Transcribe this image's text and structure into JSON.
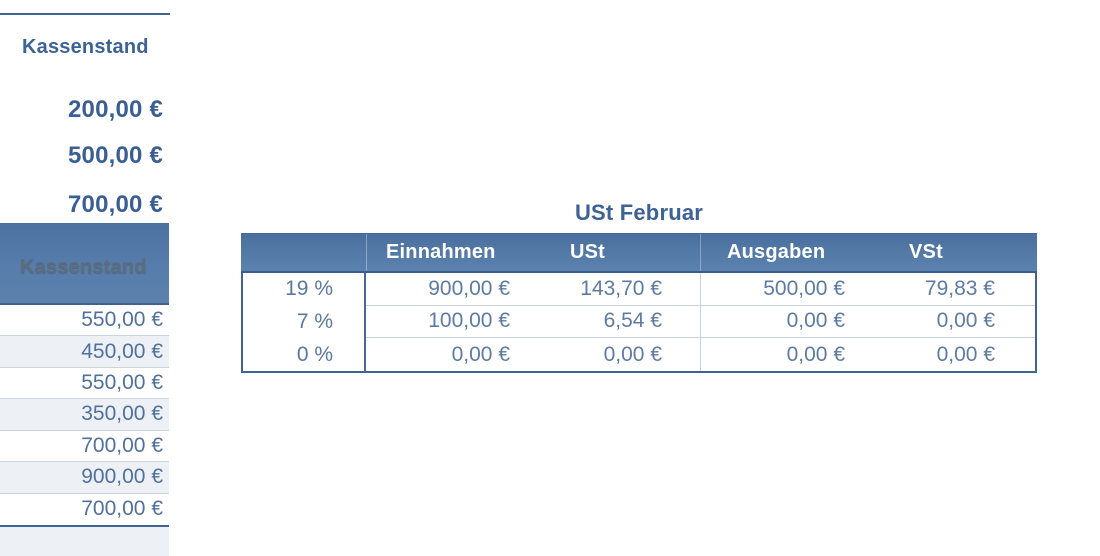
{
  "kassenstand_upper": {
    "header": "Kassenstand",
    "values": [
      "200,00 €",
      "500,00 €",
      "700,00 €"
    ]
  },
  "kassenstand_lower": {
    "header": "Kassenstand",
    "values": [
      "550,00 €",
      "450,00 €",
      "550,00 €",
      "350,00 €",
      "700,00 €",
      "900,00 €",
      "700,00 €"
    ]
  },
  "ust_table": {
    "title": "USt Februar",
    "columns": [
      "Einnahmen",
      "USt",
      "Ausgaben",
      "VSt"
    ],
    "rows": [
      {
        "label": "19 %",
        "einnahmen": "900,00 €",
        "ust": "143,70 €",
        "ausgaben": "500,00 €",
        "vst": "79,83 €"
      },
      {
        "label": "7 %",
        "einnahmen": "100,00 €",
        "ust": "6,54 €",
        "ausgaben": "0,00 €",
        "vst": "0,00 €"
      },
      {
        "label": "0 %",
        "einnahmen": "0,00 €",
        "ust": "0,00 €",
        "ausgaben": "0,00 €",
        "vst": "0,00 €"
      }
    ]
  },
  "colors": {
    "header_gradient_top": "#4a6f9e",
    "header_gradient_bottom": "#5b81ad",
    "table_border_blue": "#3e6493",
    "title_text_blue": "#3d6295",
    "cell_text_blue": "#5e7ba4",
    "alt_row_gray": "#edf1f5",
    "separator_gray": "#c8d1db",
    "muted_header_text": "#5d6c7c"
  }
}
